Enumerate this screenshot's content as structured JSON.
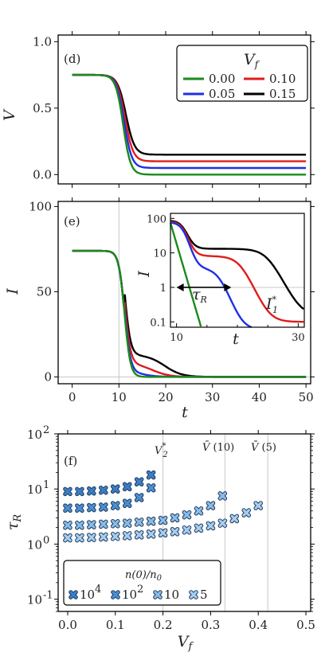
{
  "chart_data": [
    {
      "type": "line",
      "panel_label": "(d)",
      "ylabel": "V",
      "xlim": [
        -3,
        51
      ],
      "ylim": [
        -0.07,
        1.05
      ],
      "x_ticks": [
        0,
        10,
        20,
        30,
        40,
        50
      ],
      "y_ticks": [
        "0.0",
        "0.5",
        "1.0"
      ],
      "y_tick_values": [
        0.0,
        0.5,
        1.0
      ],
      "legend_title": "V_f",
      "legend_placement": "top-right",
      "initial_value": 0.75,
      "drop_time": 10,
      "series": [
        {
          "name": "0.00",
          "color": "#1a8a1a",
          "final": 0.0
        },
        {
          "name": "0.05",
          "color": "#1f2fe6",
          "final": 0.05
        },
        {
          "name": "0.10",
          "color": "#e01c1c",
          "final": 0.1
        },
        {
          "name": "0.15",
          "color": "#000000",
          "final": 0.15
        }
      ]
    },
    {
      "type": "line",
      "panel_label": "(e)",
      "ylabel": "I",
      "xlabel": "t",
      "xlim": [
        -3,
        51
      ],
      "ylim": [
        -4,
        103
      ],
      "x_ticks": [
        0,
        10,
        20,
        30,
        40,
        50
      ],
      "y_ticks": [
        "0",
        "50",
        "100"
      ],
      "y_tick_values": [
        0,
        50,
        100
      ],
      "initial_value": 74,
      "reference_lines": {
        "vertical_x": 10,
        "horizontal_y": 0
      },
      "series": [
        {
          "name": "0.00",
          "color": "#1a8a1a"
        },
        {
          "name": "0.05",
          "color": "#1f2fe6"
        },
        {
          "name": "0.10",
          "color": "#e01c1c"
        },
        {
          "name": "0.15",
          "color": "#000000"
        }
      ],
      "inset": {
        "type": "line",
        "ylabel": "I",
        "xlabel": "t",
        "xlim": [
          9,
          31
        ],
        "ylim_log": [
          0.07,
          140
        ],
        "x_ticks": [
          "10",
          "30"
        ],
        "y_ticks": [
          "0.1",
          "1",
          "10",
          "100"
        ],
        "y_tick_values": [
          0.1,
          1,
          10,
          100
        ],
        "threshold_label": "I*1",
        "threshold_value": 1,
        "arrow_label": "τR",
        "arrow_range": [
          10,
          19
        ]
      }
    },
    {
      "type": "scatter",
      "panel_label": "(f)",
      "ylabel": "τR",
      "xlabel": "V_f",
      "xlim": [
        -0.02,
        0.51
      ],
      "ylim_log": [
        0.06,
        100
      ],
      "log_y": true,
      "x_ticks": [
        "0.0",
        "0.1",
        "0.2",
        "0.3",
        "0.4",
        "0.5"
      ],
      "x_tick_values": [
        0.0,
        0.1,
        0.2,
        0.3,
        0.4,
        0.5
      ],
      "y_ticks": [
        "10^-1",
        "10^0",
        "10^1",
        "10^2"
      ],
      "y_tick_values": [
        0.1,
        1,
        10,
        100
      ],
      "vlines": [
        {
          "label": "V*2",
          "x": 0.2
        },
        {
          "label": "V̄ (10)",
          "x": 0.33
        },
        {
          "label": "V̄ (5)",
          "x": 0.42
        }
      ],
      "legend_title": "n(0)/n0",
      "legend_placement": "bottom-left",
      "series": [
        {
          "name": "10^4",
          "color": "#3d7fc7",
          "x": [
            0,
            0.025,
            0.05,
            0.075,
            0.1,
            0.125,
            0.15,
            0.175
          ],
          "y": [
            9.0,
            9.0,
            9.2,
            9.5,
            10.0,
            11.0,
            13.5,
            18.0
          ]
        },
        {
          "name": "10^2",
          "color": "#4d90d4",
          "x": [
            0,
            0.025,
            0.05,
            0.075,
            0.1,
            0.125,
            0.15,
            0.175
          ],
          "y": [
            4.5,
            4.5,
            4.6,
            4.7,
            5.0,
            5.5,
            7.0,
            10.5
          ]
        },
        {
          "name": "10",
          "color": "#8bbbe8",
          "x": [
            0,
            0.025,
            0.05,
            0.075,
            0.1,
            0.125,
            0.15,
            0.175,
            0.2,
            0.225,
            0.25,
            0.275,
            0.3,
            0.325
          ],
          "y": [
            2.2,
            2.2,
            2.25,
            2.3,
            2.35,
            2.4,
            2.5,
            2.6,
            2.7,
            3.0,
            3.4,
            4.0,
            5.0,
            7.5
          ]
        },
        {
          "name": "5",
          "color": "#a7cdf0",
          "x": [
            0,
            0.025,
            0.05,
            0.075,
            0.1,
            0.125,
            0.15,
            0.175,
            0.2,
            0.225,
            0.25,
            0.275,
            0.3,
            0.325,
            0.35,
            0.375,
            0.4
          ],
          "y": [
            1.3,
            1.3,
            1.32,
            1.35,
            1.38,
            1.42,
            1.47,
            1.52,
            1.6,
            1.68,
            1.8,
            1.95,
            2.15,
            2.4,
            2.9,
            3.7,
            5.0
          ]
        }
      ]
    }
  ]
}
